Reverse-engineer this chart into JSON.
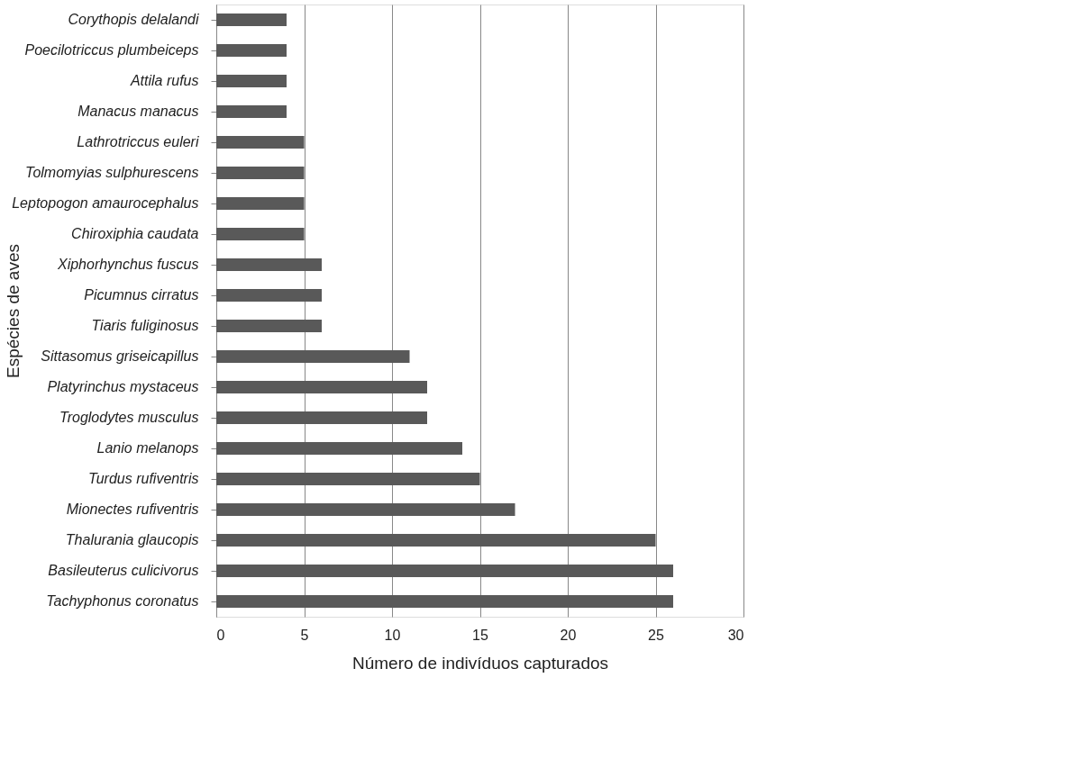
{
  "chart_data": {
    "type": "bar",
    "orientation": "horizontal",
    "xlabel": "Número de indivíduos capturados",
    "ylabel": "Espécies de aves",
    "categories": [
      "Corythopis delalandi",
      "Poecilotriccus  plumbeiceps",
      "Attila rufus",
      "Manacus manacus",
      "Lathrotriccus  euleri",
      "Tolmomyias sulphurescens",
      "Leptopogon amaurocephalus",
      "Chiroxiphia caudata",
      "Xiphorhynchus fuscus",
      "Picumnus cirratus",
      "Tiaris fuliginosus",
      "Sittasomus griseicapillus",
      "Platyrinchus mystaceus",
      "Troglodytes  musculus",
      "Lanio melanops",
      "Turdus rufiventris",
      "Mionectes  rufiventris",
      "Thalurania glaucopis",
      "Basileuterus  culicivorus",
      "Tachyphonus coronatus"
    ],
    "values": [
      4,
      4,
      4,
      4,
      5,
      5,
      5,
      5,
      6,
      6,
      6,
      11,
      12,
      12,
      14,
      15,
      17,
      25,
      26,
      26
    ],
    "color": "#595959",
    "xlim": [
      0,
      30
    ],
    "xticks": [
      0,
      5,
      10,
      15,
      20,
      25,
      30
    ],
    "grid": "x"
  }
}
